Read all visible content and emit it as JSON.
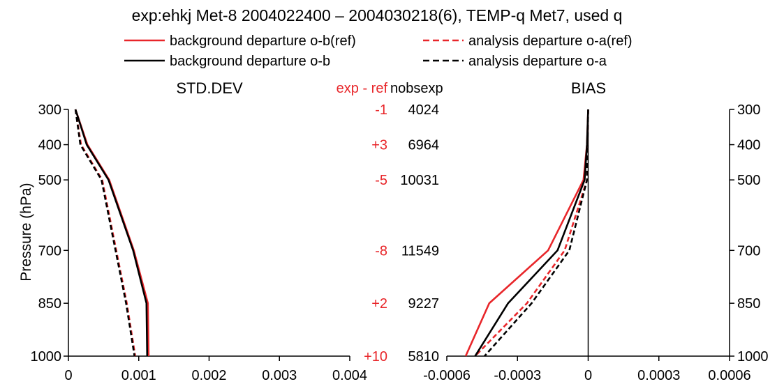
{
  "chart_data": {
    "type": "line",
    "title": "exp:ehkj Met-8 2004022400 – 2004030218(6), TEMP-q Met7, used q",
    "ylabel": "Pressure (hPa)",
    "pressure_levels": [
      300,
      400,
      500,
      700,
      850,
      1000
    ],
    "pressure_tick_labels": [
      "300",
      "400",
      "500",
      "700",
      "850",
      "1000"
    ],
    "legend": {
      "placement": "top-center",
      "entries": [
        {
          "label": "background departure o-b(ref)",
          "color": "#e8262a",
          "style": "solid"
        },
        {
          "label": "analysis departure o-a(ref)",
          "color": "#e8262a",
          "style": "dashed"
        },
        {
          "label": "background departure o-b",
          "color": "#000000",
          "style": "solid"
        },
        {
          "label": "analysis departure o-a",
          "color": "#000000",
          "style": "dashed"
        }
      ]
    },
    "panels": [
      {
        "title": "STD.DEV",
        "xlim": [
          0,
          0.004
        ],
        "x_ticks": [
          0,
          0.001,
          0.002,
          0.003,
          0.004
        ],
        "x_tick_labels": [
          "0",
          "0.001",
          "0.002",
          "0.003",
          "0.004"
        ],
        "series": [
          {
            "name": "background departure o-b(ref)",
            "color": "#e8262a",
            "style": "solid",
            "values": [
              0.0001,
              0.00027,
              0.00058,
              0.00093,
              0.00113,
              0.00114
            ]
          },
          {
            "name": "analysis departure o-a(ref)",
            "color": "#e8262a",
            "style": "dashed",
            "values": [
              0.0001,
              0.00018,
              0.00048,
              0.00068,
              0.00083,
              0.00095
            ]
          },
          {
            "name": "background departure o-b",
            "color": "#000000",
            "style": "solid",
            "values": [
              0.0001,
              0.00026,
              0.00057,
              0.00092,
              0.00111,
              0.00112
            ]
          },
          {
            "name": "analysis departure o-a",
            "color": "#000000",
            "style": "dashed",
            "values": [
              0.0001,
              0.00017,
              0.00047,
              0.00067,
              0.00082,
              0.00094
            ]
          }
        ]
      },
      {
        "title": "BIAS",
        "xlim": [
          -0.0006,
          0.0006
        ],
        "x_ticks": [
          -0.0006,
          -0.0003,
          0,
          0.0003,
          0.0006
        ],
        "x_tick_labels": [
          "-0.0006",
          "-0.0003",
          "0",
          "0.0003",
          "0.0006"
        ],
        "series": [
          {
            "name": "background departure o-b(ref)",
            "color": "#e8262a",
            "style": "solid",
            "values": [
              0,
              -5e-06,
              -2e-05,
              -0.00017,
              -0.00042,
              -0.00052
            ]
          },
          {
            "name": "analysis departure o-a(ref)",
            "color": "#e8262a",
            "style": "dashed",
            "values": [
              0,
              -3e-06,
              -5e-06,
              -0.0001,
              -0.00026,
              -0.00048
            ]
          },
          {
            "name": "background departure o-b",
            "color": "#000000",
            "style": "solid",
            "values": [
              0,
              -5e-06,
              -1.5e-05,
              -0.00013,
              -0.00034,
              -0.00048
            ]
          },
          {
            "name": "analysis departure o-a",
            "color": "#000000",
            "style": "dashed",
            "values": [
              0,
              -3e-06,
              -5e-06,
              -8e-05,
              -0.00024,
              -0.00044
            ]
          }
        ]
      }
    ],
    "counts": {
      "exp_minus_ref_header": "exp - ref",
      "nobsexp_header": "nobsexp",
      "exp_minus_ref": [
        "-1",
        "+3",
        "-5",
        "-8",
        "+2",
        "+10"
      ],
      "nobsexp": [
        "4024",
        "6964",
        "10031",
        "11549",
        "9227",
        "5810"
      ]
    },
    "colors": {
      "ref": "#e8262a",
      "exp": "#000000",
      "counts_diff": "#e8262a"
    }
  }
}
